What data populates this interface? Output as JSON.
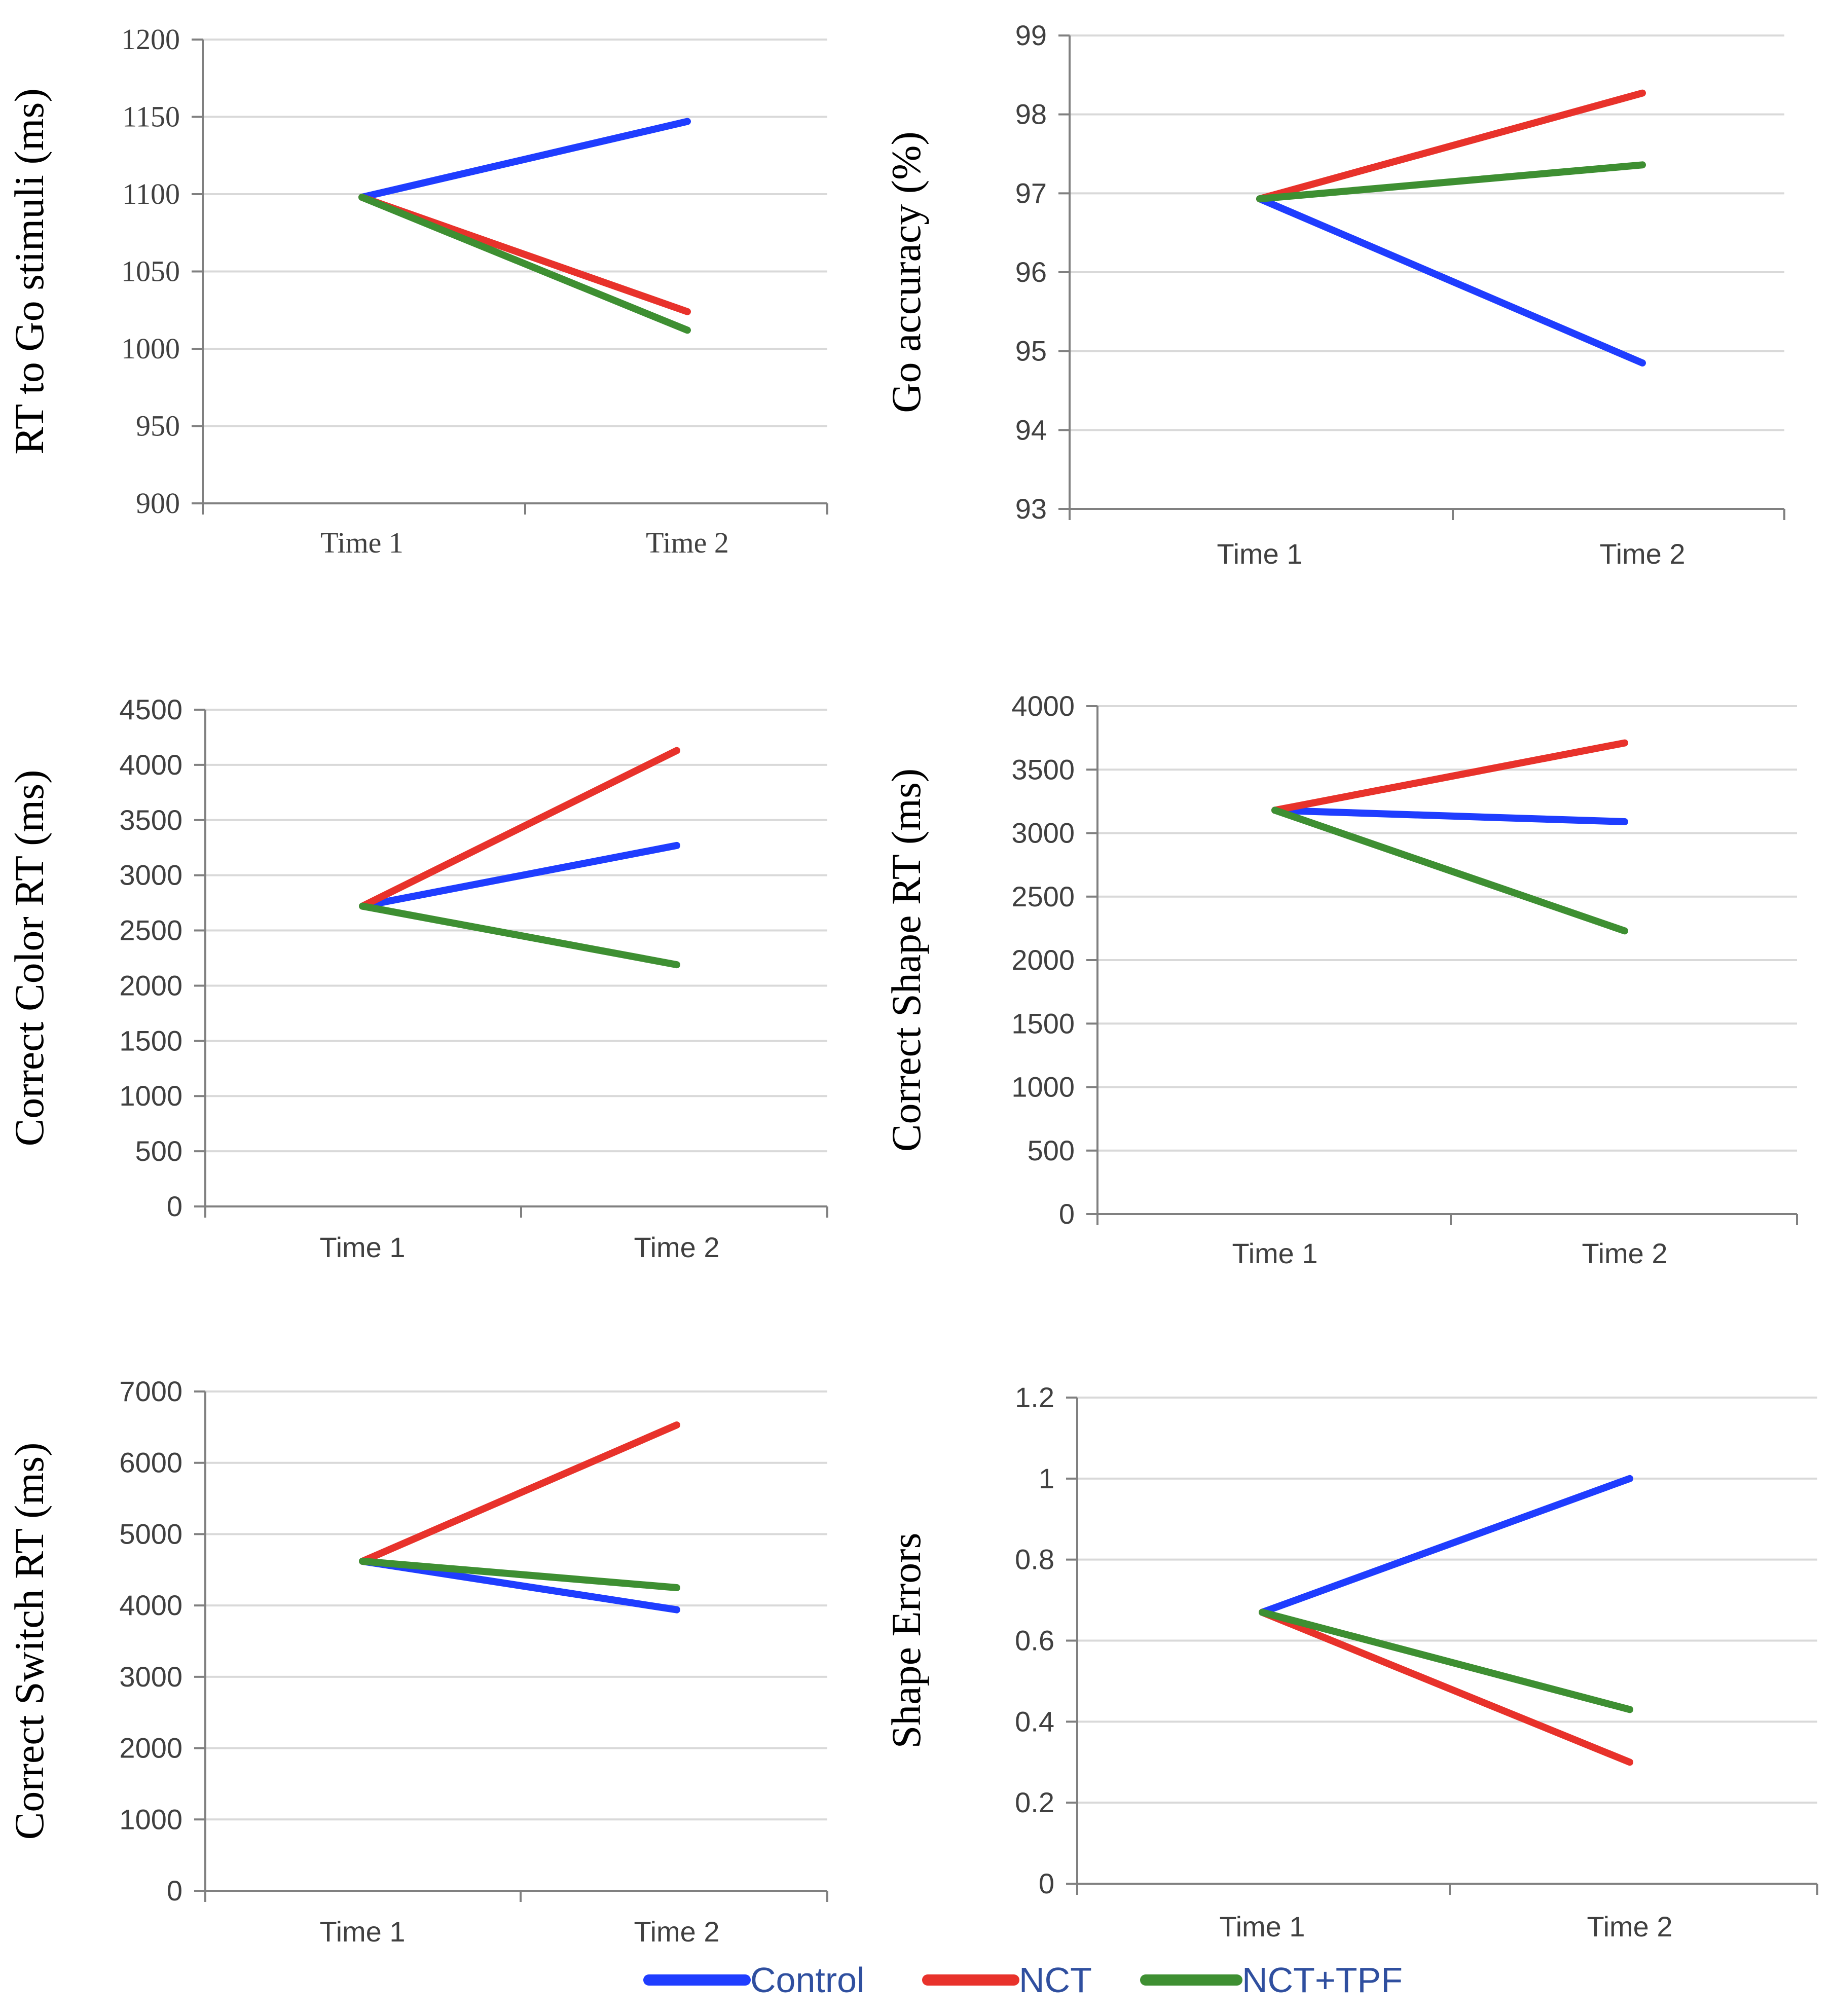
{
  "colors": {
    "Control": "#1f3dff",
    "NCT": "#e8322b",
    "NCT+TPF": "#3e8f32",
    "legend_text": "#2f4f9f"
  },
  "legend": {
    "items": [
      "Control",
      "NCT",
      "NCT+TPF"
    ]
  },
  "chart_data": [
    {
      "id": "rt-go",
      "type": "line",
      "title": "",
      "ylabel": "RT to Go stimuli (ms)",
      "xlabel": "",
      "categories": [
        "Time 1",
        "Time 2"
      ],
      "ylim": [
        900,
        1200
      ],
      "yticks": [
        "900",
        "950",
        "1000",
        "1050",
        "1100",
        "1150",
        "1200"
      ],
      "series": [
        {
          "name": "Control",
          "values": [
            1098,
            1147
          ]
        },
        {
          "name": "NCT",
          "values": [
            1098,
            1024
          ]
        },
        {
          "name": "NCT+TPF",
          "values": [
            1098,
            1012
          ]
        }
      ]
    },
    {
      "id": "go-accuracy",
      "type": "line",
      "title": "",
      "ylabel": "Go accuracy (%)",
      "xlabel": "",
      "categories": [
        "Time 1",
        "Time 2"
      ],
      "ylim": [
        93,
        99
      ],
      "yticks": [
        "93",
        "94",
        "95",
        "96",
        "97",
        "98",
        "99"
      ],
      "series": [
        {
          "name": "Control",
          "values": [
            96.93,
            94.85
          ]
        },
        {
          "name": "NCT",
          "values": [
            96.93,
            98.27
          ]
        },
        {
          "name": "NCT+TPF",
          "values": [
            96.93,
            97.36
          ]
        }
      ]
    },
    {
      "id": "color-rt",
      "type": "line",
      "title": "",
      "ylabel": "Correct Color RT (ms)",
      "xlabel": "",
      "categories": [
        "Time 1",
        "Time 2"
      ],
      "ylim": [
        0,
        4500
      ],
      "yticks": [
        "0",
        "500",
        "1000",
        "1500",
        "2000",
        "2500",
        "3000",
        "3500",
        "4000",
        "4500"
      ],
      "series": [
        {
          "name": "Control",
          "values": [
            2720,
            3270
          ]
        },
        {
          "name": "NCT",
          "values": [
            2720,
            4130
          ]
        },
        {
          "name": "NCT+TPF",
          "values": [
            2720,
            2190
          ]
        }
      ]
    },
    {
      "id": "shape-rt",
      "type": "line",
      "title": "",
      "ylabel": "Correct Shape RT (ms)",
      "xlabel": "",
      "categories": [
        "Time 1",
        "Time 2"
      ],
      "ylim": [
        0,
        4000
      ],
      "yticks": [
        "0",
        "500",
        "1000",
        "1500",
        "2000",
        "2500",
        "3000",
        "3500",
        "4000"
      ],
      "series": [
        {
          "name": "Control",
          "values": [
            3180,
            3090
          ]
        },
        {
          "name": "NCT",
          "values": [
            3180,
            3710
          ]
        },
        {
          "name": "NCT+TPF",
          "values": [
            3180,
            2230
          ]
        }
      ]
    },
    {
      "id": "switch-rt",
      "type": "line",
      "title": "",
      "ylabel": "Correct Switch RT (ms)",
      "xlabel": "",
      "categories": [
        "Time 1",
        "Time 2"
      ],
      "ylim": [
        0,
        7000
      ],
      "yticks": [
        "0",
        "1000",
        "2000",
        "3000",
        "4000",
        "5000",
        "6000",
        "7000"
      ],
      "series": [
        {
          "name": "Control",
          "values": [
            4620,
            3940
          ]
        },
        {
          "name": "NCT",
          "values": [
            4620,
            6530
          ]
        },
        {
          "name": "NCT+TPF",
          "values": [
            4620,
            4250
          ]
        }
      ]
    },
    {
      "id": "shape-errors",
      "type": "line",
      "title": "",
      "ylabel": "Shape Errors",
      "xlabel": "",
      "categories": [
        "Time 1",
        "Time 2"
      ],
      "ylim": [
        0,
        1.2
      ],
      "yticks": [
        "0",
        "0.2",
        "0.4",
        "0.6",
        "0.8",
        "1",
        "1.2"
      ],
      "series": [
        {
          "name": "Control",
          "values": [
            0.67,
            1.0
          ]
        },
        {
          "name": "NCT",
          "values": [
            0.67,
            0.3
          ]
        },
        {
          "name": "NCT+TPF",
          "values": [
            0.67,
            0.43
          ]
        }
      ]
    }
  ]
}
